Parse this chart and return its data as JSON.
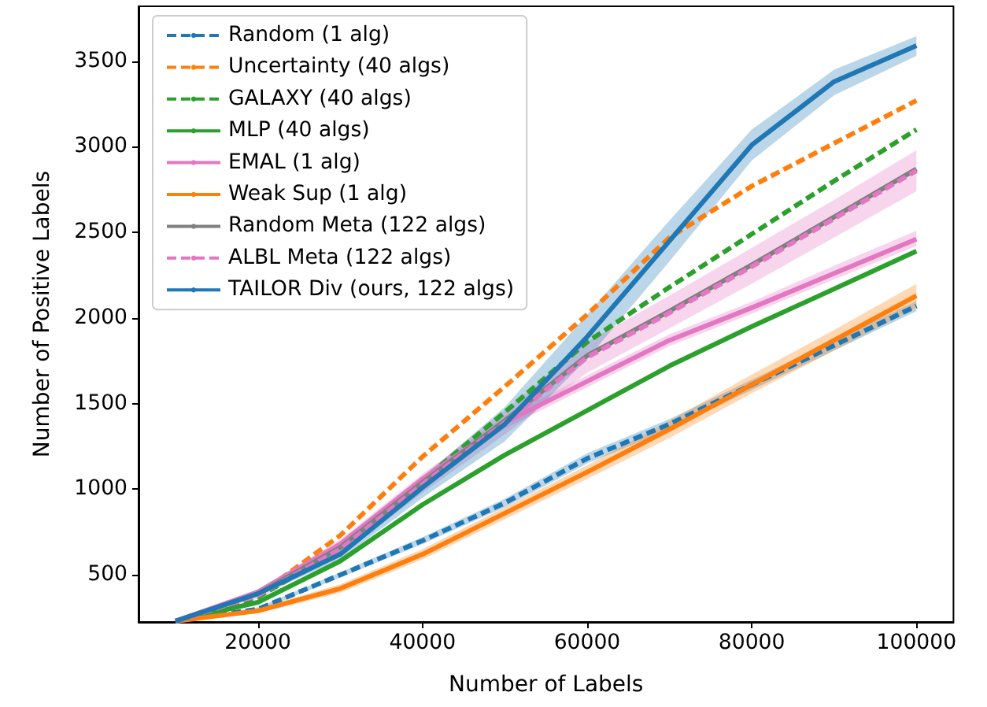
{
  "chart_data": {
    "type": "line",
    "xlabel": "Number of Labels",
    "ylabel": "Number of Positive Labels",
    "x": [
      10000,
      20000,
      30000,
      40000,
      50000,
      60000,
      70000,
      80000,
      90000,
      100000
    ],
    "xlim": [
      5500,
      104500
    ],
    "xticks": [
      20000,
      40000,
      60000,
      80000,
      100000
    ],
    "ylim": [
      225,
      3820
    ],
    "yticks": [
      500,
      1000,
      1500,
      2000,
      2500,
      3000,
      3500
    ],
    "grid": false,
    "legend": "top left",
    "marker": "none",
    "series": [
      {
        "name": "Random (1 alg)",
        "color": "#1f77b4",
        "line_style": "dashed",
        "values": [
          230,
          300,
          500,
          700,
          920,
          1180,
          1380,
          1610,
          1840,
          2070
        ],
        "lower": [
          230,
          290,
          485,
          680,
          895,
          1150,
          1350,
          1580,
          1810,
          2040
        ],
        "upper": [
          230,
          310,
          515,
          720,
          945,
          1210,
          1410,
          1640,
          1870,
          2100
        ]
      },
      {
        "name": "Uncertainty (40 algs)",
        "color": "#ff7f0e",
        "line_style": "dashed",
        "values": [
          230,
          380,
          730,
          1190,
          1600,
          2020,
          2470,
          2770,
          3020,
          3270
        ]
      },
      {
        "name": "GALAXY (40 algs)",
        "color": "#2ca02c",
        "line_style": "dashed",
        "values": [
          230,
          370,
          650,
          1050,
          1450,
          1860,
          2180,
          2490,
          2800,
          3100
        ]
      },
      {
        "name": "MLP (40 algs)",
        "color": "#2ca02c",
        "line_style": "solid",
        "values": [
          230,
          340,
          580,
          910,
          1200,
          1460,
          1720,
          1950,
          2170,
          2390
        ]
      },
      {
        "name": "EMAL (1 alg)",
        "color": "#e377c2",
        "line_style": "solid",
        "values": [
          230,
          400,
          680,
          1060,
          1390,
          1630,
          1870,
          2060,
          2260,
          2460
        ],
        "lower": [
          230,
          385,
          655,
          1030,
          1355,
          1595,
          1835,
          2025,
          2225,
          2420
        ],
        "upper": [
          230,
          415,
          705,
          1090,
          1425,
          1665,
          1905,
          2095,
          2305,
          2510
        ]
      },
      {
        "name": "Weak Sup (1 alg)",
        "color": "#ff7f0e",
        "line_style": "solid",
        "values": [
          230,
          290,
          420,
          620,
          860,
          1100,
          1350,
          1610,
          1870,
          2130
        ],
        "lower": [
          230,
          275,
          395,
          590,
          825,
          1060,
          1300,
          1560,
          1810,
          2060
        ],
        "upper": [
          230,
          305,
          445,
          650,
          895,
          1140,
          1400,
          1670,
          1930,
          2200
        ]
      },
      {
        "name": "Random Meta (122 algs)",
        "color": "#7f7f7f",
        "line_style": "solid",
        "values": [
          230,
          390,
          660,
          1040,
          1400,
          1780,
          2040,
          2310,
          2590,
          2870
        ]
      },
      {
        "name": "ALBL Meta (122 algs)",
        "color": "#e377c2",
        "line_style": "dashed",
        "values": [
          230,
          380,
          650,
          1030,
          1390,
          1770,
          2030,
          2300,
          2580,
          2860
        ],
        "lower": [
          230,
          360,
          610,
          980,
          1320,
          1680,
          1940,
          2200,
          2470,
          2740
        ],
        "upper": [
          230,
          410,
          690,
          1080,
          1460,
          1860,
          2130,
          2410,
          2690,
          2980
        ]
      },
      {
        "name": "TAILOR Div (ours, 122 algs)",
        "color": "#1f77b4",
        "line_style": "solid",
        "values": [
          230,
          390,
          620,
          1010,
          1380,
          1890,
          2450,
          3010,
          3380,
          3590
        ],
        "lower": [
          230,
          375,
          590,
          950,
          1280,
          1760,
          2330,
          2920,
          3300,
          3530
        ],
        "upper": [
          230,
          405,
          650,
          1070,
          1480,
          2020,
          2570,
          3100,
          3450,
          3645
        ]
      }
    ]
  }
}
